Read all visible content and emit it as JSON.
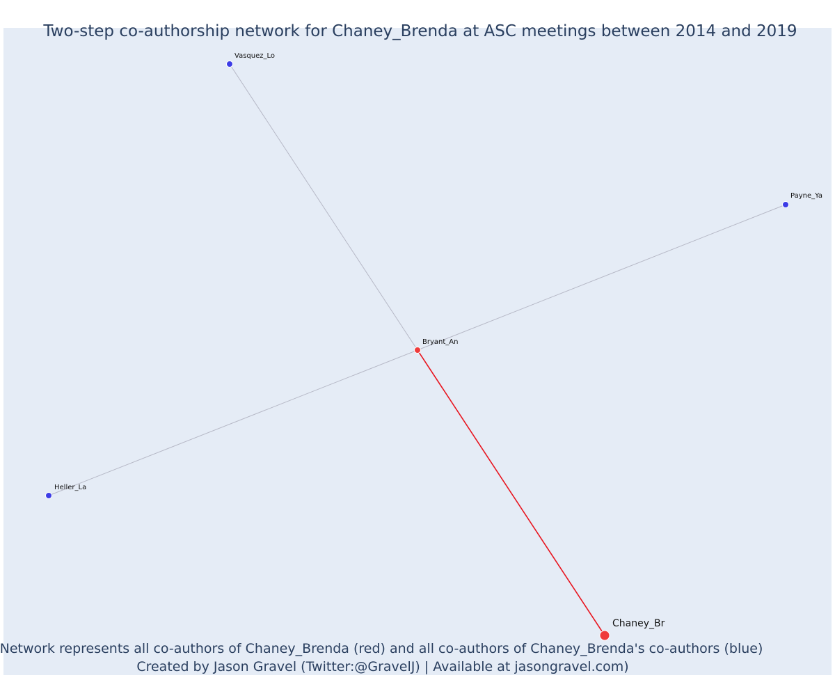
{
  "title": "Two-step co-authorship network for Chaney_Brenda at ASC meetings between 2014 and 2019",
  "caption": {
    "line1": "Network represents all co-authors of Chaney_Brenda (red) and all co-authors of Chaney_Brenda's co-authors (blue)",
    "line2": "Created by Jason Gravel (Twitter:@GravelJ) | Available at jasongravel.com)"
  },
  "colors": {
    "background": "#e5ecf6",
    "red_node": "#ef3b3b",
    "blue_node": "#3c3ce6",
    "red_edge": "#e8141e",
    "grey_edge": "#b6b8c6",
    "node_outline": "#ffffff"
  },
  "nodes": [
    {
      "id": "Chaney_Br",
      "label": "Chaney_Br",
      "group": "focal"
    },
    {
      "id": "Bryant_An",
      "label": "Bryant_An",
      "group": "coauthor"
    },
    {
      "id": "Vasquez_Lo",
      "label": "Vasquez_Lo",
      "group": "second"
    },
    {
      "id": "Payne_Ya",
      "label": "Payne_Ya",
      "group": "second"
    },
    {
      "id": "Heller_La",
      "label": "Heller_La",
      "group": "second"
    }
  ],
  "edges": [
    {
      "source": "Chaney_Br",
      "target": "Bryant_An",
      "type": "direct"
    },
    {
      "source": "Bryant_An",
      "target": "Vasquez_Lo",
      "type": "indirect"
    },
    {
      "source": "Bryant_An",
      "target": "Payne_Ya",
      "type": "indirect"
    },
    {
      "source": "Bryant_An",
      "target": "Heller_La",
      "type": "indirect"
    }
  ]
}
